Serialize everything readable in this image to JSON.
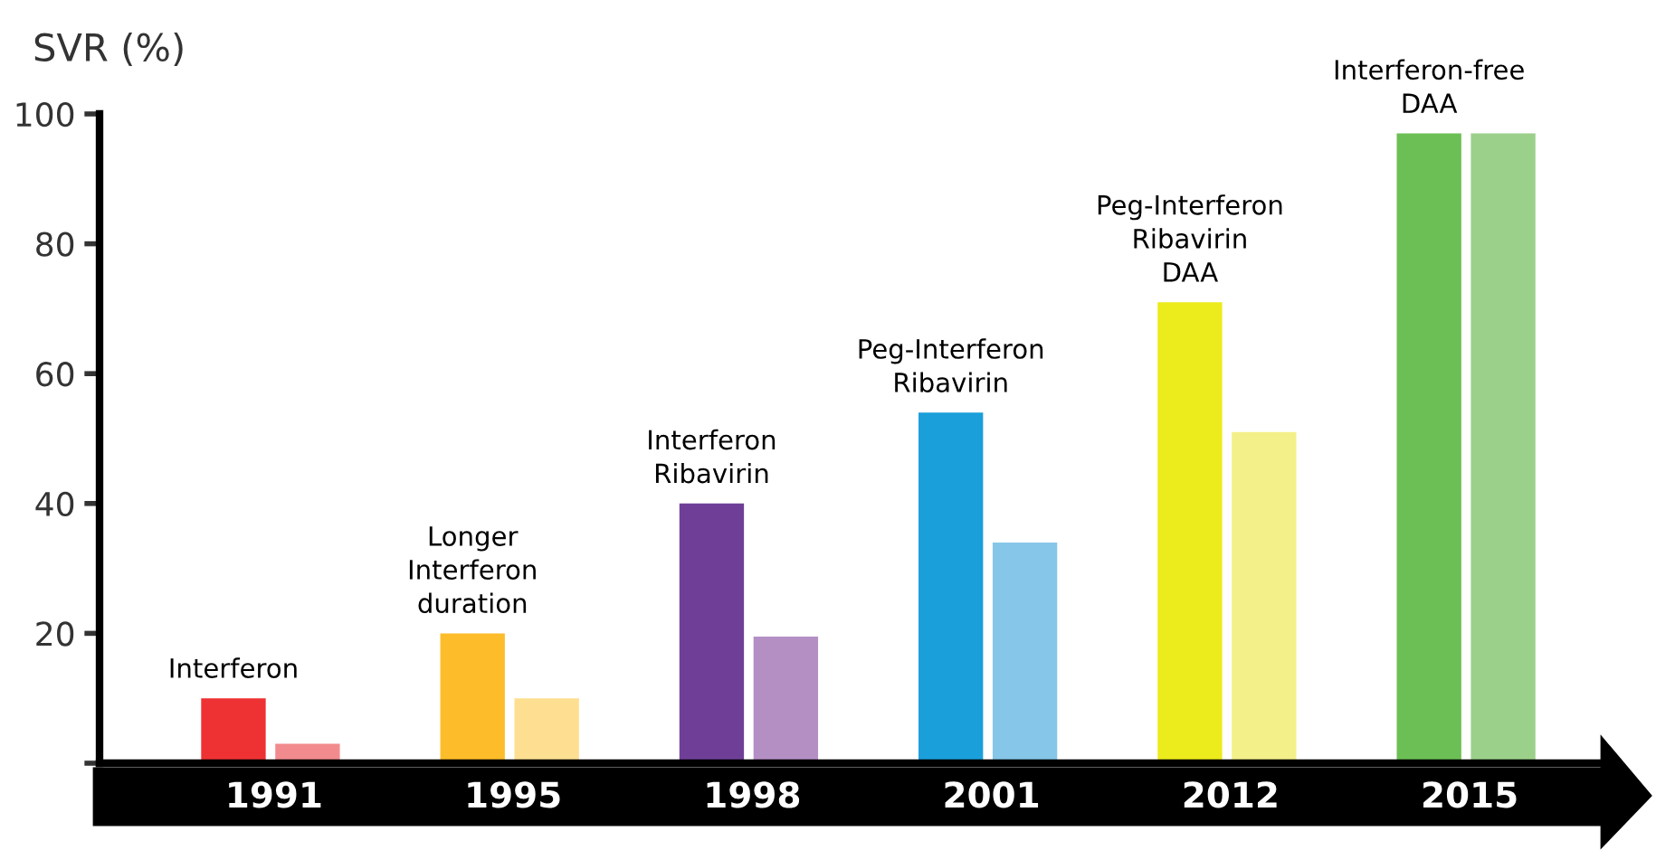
{
  "chart_data": {
    "type": "bar",
    "ylabel": "SVR (%)",
    "categories": [
      "1991",
      "1995",
      "1998",
      "2001",
      "2012",
      "2015"
    ],
    "series": [
      {
        "colors": [
          "#ee3233",
          "#fdbd2a",
          "#6f3f98",
          "#1a9fdb",
          "#eceb1c",
          "#6cbf55"
        ],
        "values": [
          10,
          20,
          40,
          54,
          71,
          97
        ]
      },
      {
        "colors": [
          "#f28b8e",
          "#fedf91",
          "#b48fc4",
          "#86c6e8",
          "#f3f08a",
          "#9bd08a"
        ],
        "values": [
          3,
          10,
          19.5,
          34,
          51,
          97
        ]
      }
    ],
    "ylim": [
      0,
      100
    ],
    "yticks": [
      {
        "value": 0,
        "label": null
      },
      20,
      40,
      60,
      80,
      100
    ],
    "grid": false,
    "legend": false,
    "annotations": [
      "Interferon",
      "Longer\nInterferon\nduration",
      "Interferon\nRibavirin",
      "Peg-Interferon\nRibavirin",
      "Peg-Interferon\nRibavirin\nDAA",
      "Interferon-free\nDAA"
    ]
  }
}
